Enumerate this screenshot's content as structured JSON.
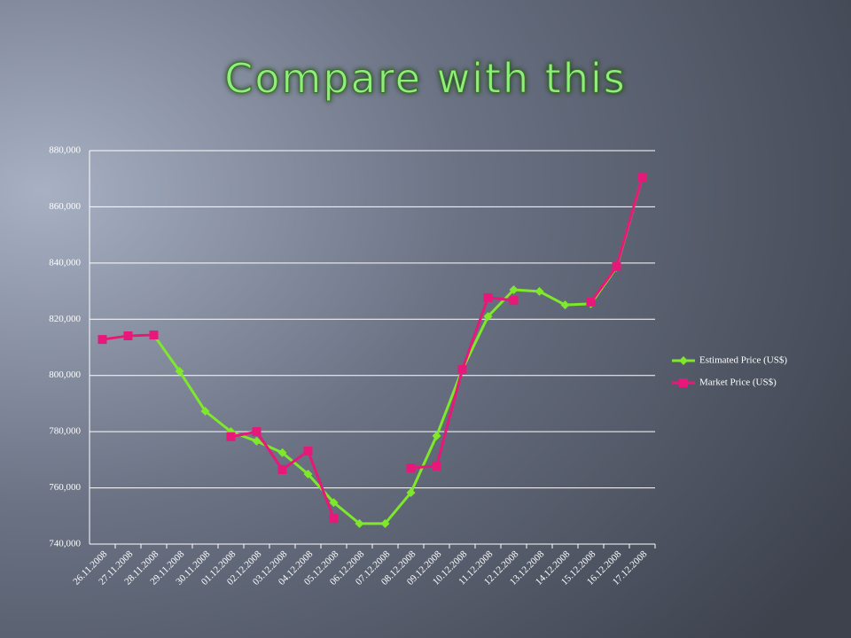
{
  "chart_data": {
    "type": "line",
    "title": "Compare with this",
    "categories": [
      "26.11.2008",
      "27.11.2008",
      "28.11.2008",
      "29.11.2008",
      "30.11.2008",
      "01.12.2008",
      "02.12.2008",
      "03.12.2008",
      "04.12.2008",
      "05.12.2008",
      "06.12.2008",
      "07.12.2008",
      "08.12.2008",
      "09.12.2008",
      "10.12.2008",
      "11.12.2008",
      "12.12.2008",
      "13.12.2008",
      "14.12.2008",
      "15.12.2008",
      "16.12.2008",
      "17.12.2008"
    ],
    "series": [
      {
        "name": "Estimated Price (US$)",
        "color": "#7fe82a",
        "marker": "diamond",
        "values": [
          812800,
          814100,
          814400,
          801500,
          787300,
          780000,
          776600,
          772500,
          764900,
          754800,
          747300,
          747300,
          758300,
          778500,
          802100,
          821000,
          830500,
          829900,
          825100,
          825500,
          838400,
          870600
        ]
      },
      {
        "name": "Market Price (US$)",
        "color": "#e8177a",
        "marker": "square",
        "values": [
          812800,
          814100,
          814400,
          null,
          null,
          778200,
          780000,
          766500,
          773100,
          749100,
          null,
          null,
          767100,
          767800,
          802100,
          827700,
          826700,
          null,
          null,
          826100,
          838700,
          870600
        ]
      }
    ],
    "ylim": [
      740000,
      880000
    ],
    "yticks": [
      {
        "value": 740000,
        "label": "740,000"
      },
      {
        "value": 760000,
        "label": "760,000"
      },
      {
        "value": 780000,
        "label": "780,000"
      },
      {
        "value": 800000,
        "label": "800,000"
      },
      {
        "value": 820000,
        "label": "820,000"
      },
      {
        "value": 840000,
        "label": "840,000"
      },
      {
        "value": 860000,
        "label": "860,000"
      },
      {
        "value": 880000,
        "label": "880,000"
      }
    ],
    "grid": true,
    "legend": "right"
  }
}
